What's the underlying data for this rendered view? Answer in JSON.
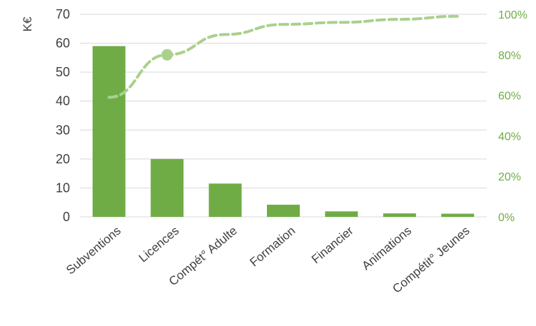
{
  "chart_data": {
    "type": "bar",
    "categories": [
      "Subventions",
      "Licences",
      "Compét° Adulte",
      "Formation",
      "Financier",
      "Animations",
      "Compétit° Jeunes"
    ],
    "series": [
      {
        "type": "bar",
        "axis": "left",
        "values": [
          59,
          20,
          11.5,
          4.2,
          1.9,
          1.2,
          1.1
        ]
      },
      {
        "type": "line",
        "axis": "right",
        "style": "dashed",
        "values": [
          0.59,
          0.8,
          0.9,
          0.95,
          0.96,
          0.975,
          0.99
        ]
      }
    ],
    "highlight_point": {
      "series": 1,
      "index": 1
    },
    "ylabel": "K€",
    "ylim": [
      0,
      70
    ],
    "yticks": [
      0,
      10,
      20,
      30,
      40,
      50,
      60,
      70
    ],
    "y2lim": [
      0,
      1.0
    ],
    "y2ticks": [
      "0%",
      "20%",
      "40%",
      "60%",
      "80%",
      "100%"
    ],
    "grid": true,
    "legend": "none",
    "colors": {
      "bar": "#6fac46",
      "line": "#a9d18e",
      "right_axis_text": "#70ad47",
      "grid": "#d9d9d9",
      "text": "#404040"
    }
  }
}
